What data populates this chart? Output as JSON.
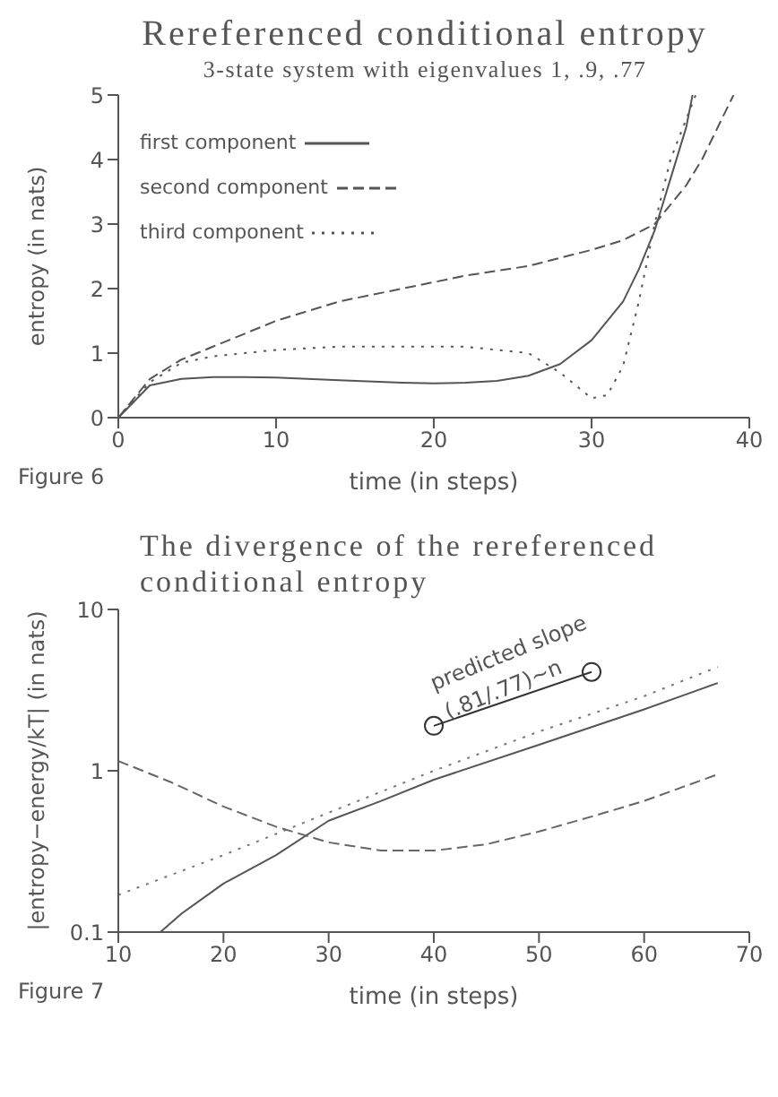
{
  "chart_data": [
    {
      "type": "line",
      "title": "Rereferenced conditional entropy",
      "subtitle": "3-state system with eigenvalues 1, .9, .77",
      "xlabel": "time (in steps)",
      "ylabel": "entropy (in nats)",
      "annotations": [
        "Figure 6"
      ],
      "xlim": [
        0,
        40
      ],
      "xticks": [
        0,
        10,
        20,
        30,
        40
      ],
      "ylim": [
        0,
        5
      ],
      "yticks": [
        0,
        1,
        2,
        3,
        4,
        5
      ],
      "legend": "top left",
      "grid": false,
      "series": [
        {
          "name": "first component",
          "color": "#555555",
          "line_style": "solid",
          "x": [
            0,
            2,
            4,
            6,
            8,
            10,
            14,
            18,
            20,
            22,
            24,
            26,
            28,
            30,
            32,
            33,
            34,
            35,
            36,
            36.4
          ],
          "values": [
            0,
            0.5,
            0.6,
            0.63,
            0.63,
            0.62,
            0.58,
            0.54,
            0.53,
            0.54,
            0.57,
            0.65,
            0.83,
            1.2,
            1.8,
            2.3,
            2.9,
            3.7,
            4.5,
            5
          ]
        },
        {
          "name": "second component",
          "color": "#555555",
          "line_style": "dashed",
          "x": [
            0,
            2,
            4,
            6,
            10,
            14,
            18,
            22,
            26,
            30,
            32,
            34,
            35,
            36,
            37,
            38,
            39
          ],
          "values": [
            0,
            0.6,
            0.9,
            1.1,
            1.5,
            1.8,
            2.0,
            2.2,
            2.35,
            2.6,
            2.75,
            3.0,
            3.3,
            3.6,
            4.0,
            4.5,
            5.0
          ]
        },
        {
          "name": "third component",
          "color": "#555555",
          "line_style": "dotted",
          "x": [
            0,
            2,
            4,
            6,
            10,
            14,
            18,
            22,
            26,
            28,
            30,
            31,
            32,
            33,
            34,
            35,
            36.6
          ],
          "values": [
            0,
            0.55,
            0.85,
            0.95,
            1.05,
            1.1,
            1.1,
            1.1,
            1.0,
            0.7,
            0.3,
            0.35,
            0.8,
            1.8,
            3.0,
            4.0,
            5.0
          ]
        }
      ]
    },
    {
      "type": "line",
      "title": "The divergence of the rereferenced conditional entropy",
      "xlabel": "time (in steps)",
      "ylabel": "|entropy−energy/kT| (in nats)",
      "log": "y",
      "xlim": [
        10,
        70
      ],
      "xticks": [
        10,
        20,
        30,
        40,
        50,
        60,
        70
      ],
      "ylim": [
        0.1,
        10
      ],
      "yticks": [
        0.1,
        1,
        10
      ],
      "legend": false,
      "grid": false,
      "annotations": [
        "Figure 7",
        "predicted slope",
        "(.81/.77)~n"
      ],
      "series": [
        {
          "color": "#555555",
          "line_style": "solid",
          "x": [
            14,
            16,
            20,
            25,
            30,
            35,
            40,
            50,
            60,
            67
          ],
          "values": [
            0.1,
            0.13,
            0.2,
            0.3,
            0.49,
            0.65,
            0.88,
            1.45,
            2.4,
            3.5
          ]
        },
        {
          "color": "#777777",
          "line_style": "dotted",
          "x": [
            10,
            20,
            30,
            40,
            50,
            60,
            67
          ],
          "values": [
            0.17,
            0.3,
            0.55,
            1.0,
            1.75,
            2.9,
            4.4
          ]
        },
        {
          "color": "#666666",
          "line_style": "dashed",
          "x": [
            10,
            15,
            20,
            25,
            30,
            35,
            40,
            45,
            50,
            55,
            60,
            67
          ],
          "values": [
            1.15,
            0.85,
            0.6,
            0.45,
            0.36,
            0.32,
            0.32,
            0.35,
            0.42,
            0.52,
            0.65,
            0.95
          ]
        },
        {
          "color": "#333333",
          "line_style": "solid",
          "marker": "circle",
          "x": [
            40,
            55
          ],
          "values": [
            1.9,
            4.1
          ]
        }
      ]
    }
  ]
}
